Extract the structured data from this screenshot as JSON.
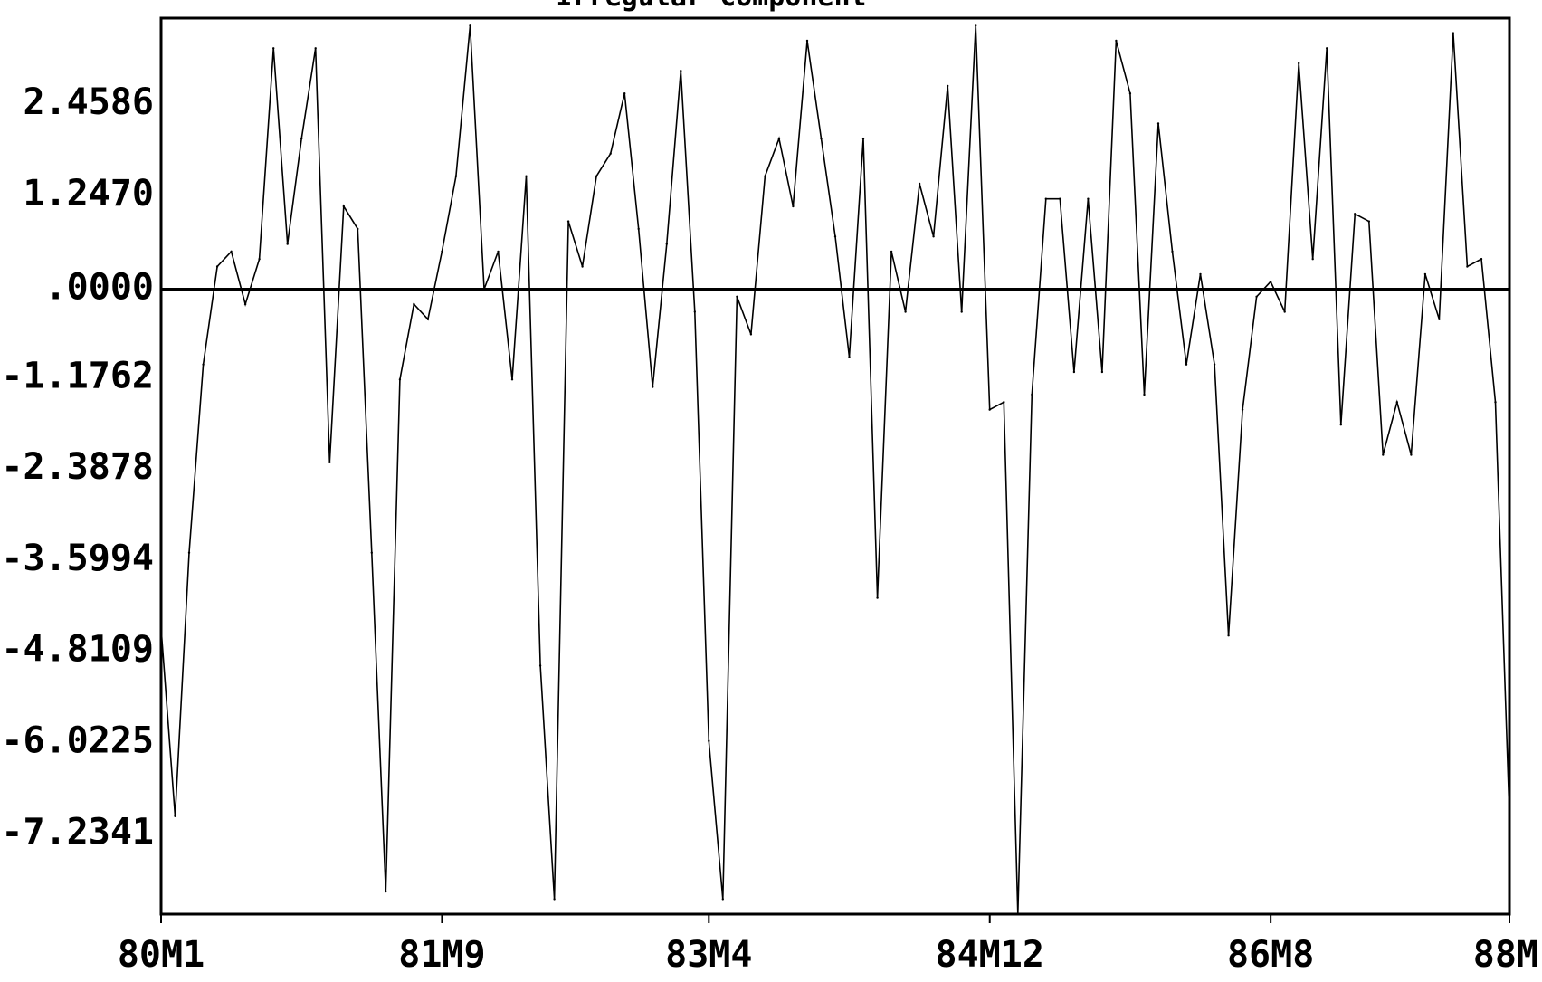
{
  "chart_data": {
    "type": "line",
    "title": "Irregular Component",
    "xlabel": "",
    "ylabel": "",
    "y_ticks": [
      "2.4586",
      "1.2470",
      ".0000",
      "-1.1762",
      "-2.3878",
      "-3.5994",
      "-4.8109",
      "-6.0225",
      "-7.2341"
    ],
    "y_tick_values": [
      2.4586,
      1.247,
      0.0,
      -1.1762,
      -2.3878,
      -3.5994,
      -4.8109,
      -6.0225,
      -7.2341
    ],
    "x_ticks": [
      "80M1",
      "81M9",
      "83M4",
      "84M12",
      "86M8",
      "88M"
    ],
    "x_tick_index": [
      0,
      20,
      39,
      59,
      79,
      96
    ],
    "ylim": [
      -8.3,
      3.6
    ],
    "reference_line": 0,
    "grid": false,
    "legend": "none",
    "colors": {
      "line": "#000000",
      "frame": "#000000",
      "background": "#ffffff"
    },
    "series": [
      {
        "values": [
          -4.5,
          -7.0,
          -3.5,
          -1.0,
          0.3,
          0.5,
          -0.2,
          0.4,
          3.2,
          0.6,
          2.0,
          3.2,
          -2.3,
          1.1,
          0.8,
          -3.5,
          -8.0,
          -1.2,
          -0.2,
          -0.4,
          0.5,
          1.5,
          3.5,
          0.0,
          0.5,
          -1.2,
          1.5,
          -5.0,
          -8.1,
          0.9,
          0.3,
          1.5,
          1.8,
          2.6,
          0.8,
          -1.3,
          0.6,
          2.9,
          -0.3,
          -6.0,
          -8.1,
          -0.1,
          -0.6,
          1.5,
          2.0,
          1.1,
          3.3,
          2.0,
          0.7,
          -0.9,
          2.0,
          -4.1,
          0.5,
          -0.3,
          1.4,
          0.7,
          2.7,
          -0.3,
          3.5,
          -1.6,
          -1.5,
          -8.3,
          -1.4,
          1.2,
          1.2,
          -1.1,
          1.2,
          -1.1,
          3.3,
          2.6,
          -1.4,
          2.2,
          0.5,
          -1.0,
          0.2,
          -1.0,
          -4.6,
          -1.6,
          -0.1,
          0.1,
          -0.3,
          3.0,
          0.4,
          3.2,
          -1.8,
          1.0,
          0.9,
          -2.2,
          -1.5,
          -2.2,
          0.2,
          -0.4,
          3.4,
          0.3,
          0.4,
          -1.5,
          -7.0
        ]
      }
    ]
  }
}
